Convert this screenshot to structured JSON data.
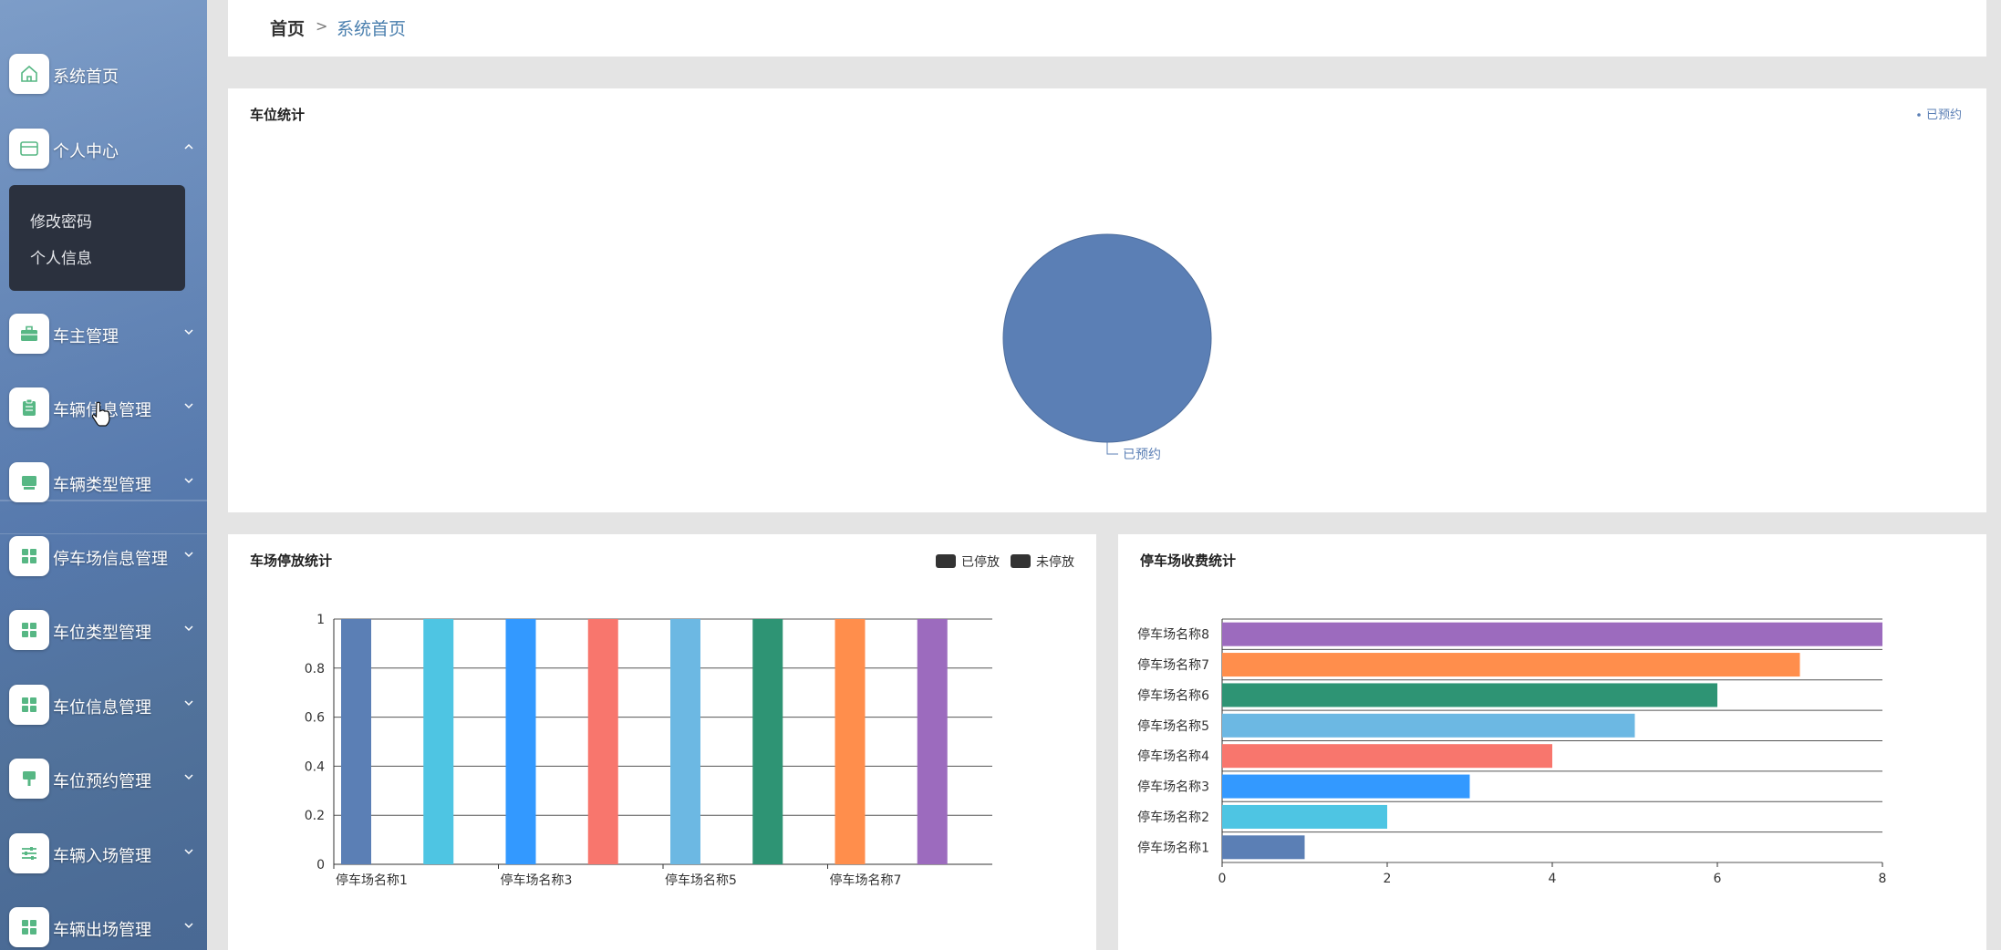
{
  "breadcrumb": {
    "home": "首页",
    "separator": ">",
    "current": "系统首页"
  },
  "sidebar": {
    "items": [
      {
        "label": "系统首页",
        "icon": "home-icon",
        "has_chevron": false,
        "chevron": ""
      },
      {
        "label": "个人中心",
        "icon": "card-icon",
        "has_chevron": true,
        "chevron": "up"
      },
      {
        "label": "车主管理",
        "icon": "briefcase-icon",
        "has_chevron": true,
        "chevron": "down"
      },
      {
        "label": "车辆信息管理",
        "icon": "clipboard-icon",
        "has_chevron": true,
        "chevron": "down"
      },
      {
        "label": "车辆类型管理",
        "icon": "monitor-icon",
        "has_chevron": true,
        "chevron": "down"
      },
      {
        "label": "停车场信息管理",
        "icon": "grid-icon",
        "has_chevron": true,
        "chevron": "down"
      },
      {
        "label": "车位类型管理",
        "icon": "grid-icon",
        "has_chevron": true,
        "chevron": "down"
      },
      {
        "label": "车位信息管理",
        "icon": "grid-icon",
        "has_chevron": true,
        "chevron": "down"
      },
      {
        "label": "车位预约管理",
        "icon": "flag-icon",
        "has_chevron": true,
        "chevron": "down"
      },
      {
        "label": "车辆入场管理",
        "icon": "sliders-icon",
        "has_chevron": true,
        "chevron": "down"
      },
      {
        "label": "车辆出场管理",
        "icon": "grid-icon",
        "has_chevron": true,
        "chevron": "down"
      }
    ],
    "submenu": [
      "修改密码",
      "个人信息"
    ]
  },
  "colors": {
    "accent": "#5b7fb5",
    "icon_green": "#57b784",
    "submenu_bg": "#2b313e"
  },
  "chart_data": [
    {
      "type": "pie",
      "title": "车位统计",
      "legend": [
        "已预约"
      ],
      "legend_position": "top-right",
      "categories": [
        "已预约"
      ],
      "values": [
        1
      ],
      "colors": [
        "#5b7fb5"
      ]
    },
    {
      "type": "bar",
      "title": "车场停放统计",
      "legend": [
        "已停放",
        "未停放"
      ],
      "legend_position": "top-right",
      "categories": [
        "停车场名称1",
        "停车场名称2",
        "停车场名称3",
        "停车场名称4",
        "停车场名称5",
        "停车场名称6",
        "停车场名称7",
        "停车场名称8"
      ],
      "tick_labels": [
        "停车场名称1",
        "停车场名称3",
        "停车场名称5",
        "停车场名称7"
      ],
      "values": [
        1,
        1,
        1,
        1,
        1,
        1,
        1,
        1
      ],
      "colors": [
        "#5b7fb5",
        "#4ec5e3",
        "#3399ff",
        "#f8766d",
        "#6cb8e3",
        "#2e9474",
        "#ff8e4c",
        "#9c6bbe"
      ],
      "ylim": [
        0,
        1
      ],
      "yticks": [
        0,
        0.2,
        0.4,
        0.6,
        0.8,
        1
      ],
      "grid": true
    },
    {
      "type": "bar",
      "orientation": "horizontal",
      "title": "停车场收费统计",
      "categories": [
        "停车场名称1",
        "停车场名称2",
        "停车场名称3",
        "停车场名称4",
        "停车场名称5",
        "停车场名称6",
        "停车场名称7",
        "停车场名称8"
      ],
      "values": [
        1,
        2,
        3,
        4,
        5,
        6,
        7,
        8
      ],
      "colors": [
        "#5b7fb5",
        "#4ec5e3",
        "#3399ff",
        "#f8766d",
        "#6cb8e3",
        "#2e9474",
        "#ff8e4c",
        "#9c6bbe"
      ],
      "xlim": [
        0,
        8
      ],
      "xticks": [
        0,
        2,
        4,
        6,
        8
      ],
      "grid": true
    }
  ]
}
